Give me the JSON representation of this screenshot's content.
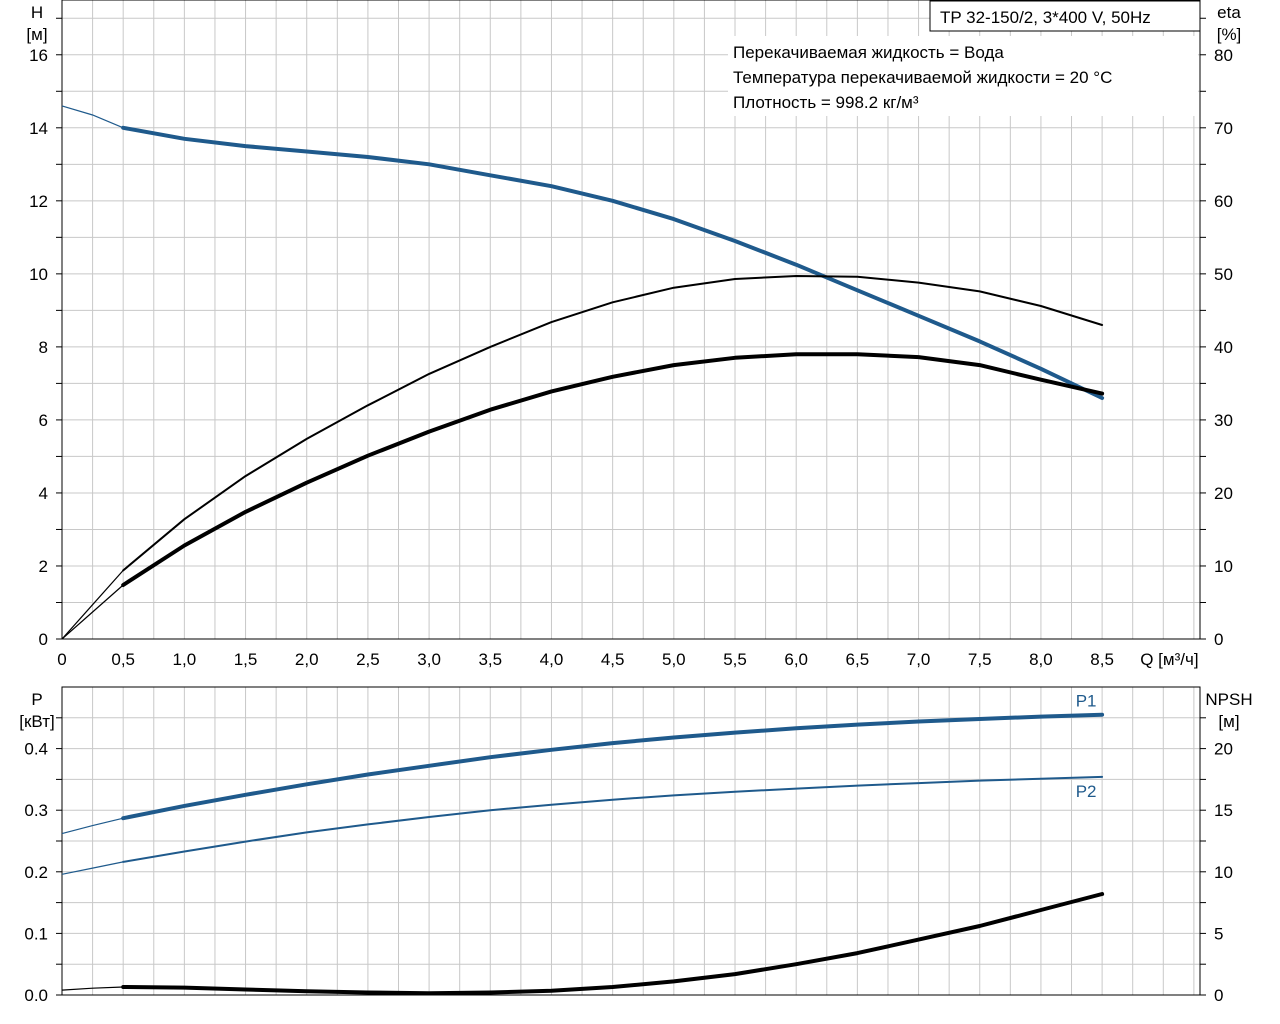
{
  "chart_data": [
    {
      "type": "line",
      "title": "TP 32-150/2, 3*400 V, 50Hz",
      "annotations": [
        "Перекачиваемая жидкость = Вода",
        "Температура перекачиваемой жидкости = 20 °C",
        "Плотность = 998.2 кг/м³"
      ],
      "xlabel": "Q [м³/ч]",
      "xlim": [
        0,
        9.3
      ],
      "x_ticks": [
        "0",
        "0,5",
        "1,0",
        "1,5",
        "2,0",
        "2,5",
        "3,0",
        "3,5",
        "4,0",
        "4,5",
        "5,0",
        "5,5",
        "6,0",
        "6,5",
        "7,0",
        "7,5",
        "8,0",
        "8,5"
      ],
      "left_axis": {
        "label_top": "H",
        "label_unit": "[м]",
        "ylim": [
          0,
          17.5
        ],
        "ticks": [
          "0",
          "2",
          "4",
          "6",
          "8",
          "10",
          "12",
          "14",
          "16"
        ]
      },
      "right_axis": {
        "label_top": "eta",
        "label_unit": "[%]",
        "ylim": [
          0,
          87.5
        ],
        "ticks": [
          "0",
          "10",
          "20",
          "30",
          "40",
          "50",
          "60",
          "70",
          "80"
        ]
      },
      "grid": true,
      "series": [
        {
          "axis": "left",
          "color": "#1f5a8c",
          "x": [
            0.5,
            1.0,
            1.5,
            2.0,
            2.5,
            3.0,
            3.5,
            4.0,
            4.5,
            5.0,
            5.5,
            6.0,
            6.5,
            7.0,
            7.5,
            8.0,
            8.5
          ],
          "y": [
            14.0,
            13.7,
            13.5,
            13.35,
            13.2,
            13.0,
            12.7,
            12.4,
            12.0,
            11.5,
            10.9,
            10.25,
            9.55,
            8.85,
            8.15,
            7.4,
            6.6
          ],
          "extension": {
            "x": [
              0,
              0.25,
              0.5
            ],
            "y": [
              14.6,
              14.35,
              14.0
            ]
          }
        },
        {
          "axis": "right",
          "color": "#000000",
          "x": [
            0.5,
            1.0,
            1.5,
            2.0,
            2.5,
            3.0,
            3.5,
            4.0,
            4.5,
            5.0,
            5.5,
            6.0,
            6.5,
            7.0,
            7.5,
            8.0,
            8.5
          ],
          "y": [
            7.4,
            12.8,
            17.4,
            21.4,
            25.1,
            28.4,
            31.4,
            33.9,
            35.9,
            37.5,
            38.5,
            39.0,
            39.0,
            38.6,
            37.5,
            35.5,
            33.6
          ],
          "extension": {
            "x": [
              0,
              0.25,
              0.5
            ],
            "y": [
              0,
              3.7,
              7.4
            ]
          }
        },
        {
          "axis": "right",
          "color": "#000000",
          "x": [
            0.5,
            1.0,
            1.5,
            2.0,
            2.5,
            3.0,
            3.5,
            4.0,
            4.5,
            5.0,
            5.5,
            6.0,
            6.5,
            7.0,
            7.5,
            8.0,
            8.5
          ],
          "y": [
            9.4,
            16.4,
            22.3,
            27.4,
            32.0,
            36.3,
            40.0,
            43.4,
            46.1,
            48.1,
            49.3,
            49.7,
            49.6,
            48.8,
            47.6,
            45.6,
            43.0
          ],
          "extension": {
            "x": [
              0,
              0.25,
              0.5
            ],
            "y": [
              0,
              4.7,
              9.4
            ]
          }
        }
      ]
    },
    {
      "type": "line",
      "xlim": [
        0,
        9.3
      ],
      "left_axis": {
        "label_top": "P",
        "label_unit": "[кВт]",
        "ylim": [
          0,
          0.5
        ],
        "ticks": [
          "0.0",
          "0.1",
          "0.2",
          "0.3",
          "0.4"
        ]
      },
      "right_axis": {
        "label_top": "NPSH",
        "label_unit": "[м]",
        "ylim": [
          0,
          25
        ],
        "ticks": [
          "0",
          "5",
          "10",
          "15",
          "20"
        ]
      },
      "grid": true,
      "series": [
        {
          "name": "P1",
          "axis": "left",
          "color": "#1f5a8c",
          "x": [
            0.5,
            1.0,
            1.5,
            2.0,
            2.5,
            3.0,
            3.5,
            4.0,
            4.5,
            5.0,
            5.5,
            6.0,
            6.5,
            7.0,
            7.5,
            8.0,
            8.5
          ],
          "y": [
            0.287,
            0.307,
            0.325,
            0.342,
            0.358,
            0.372,
            0.386,
            0.398,
            0.409,
            0.418,
            0.426,
            0.433,
            0.439,
            0.444,
            0.448,
            0.452,
            0.455
          ],
          "extension": {
            "x": [
              0,
              0.25,
              0.5
            ],
            "y": [
              0.262,
              0.275,
              0.287
            ]
          }
        },
        {
          "name": "P2",
          "axis": "left",
          "color": "#1f5a8c",
          "x": [
            0.5,
            1.0,
            1.5,
            2.0,
            2.5,
            3.0,
            3.5,
            4.0,
            4.5,
            5.0,
            5.5,
            6.0,
            6.5,
            7.0,
            7.5,
            8.0,
            8.5
          ],
          "y": [
            0.216,
            0.233,
            0.249,
            0.264,
            0.277,
            0.289,
            0.3,
            0.309,
            0.317,
            0.324,
            0.33,
            0.335,
            0.34,
            0.344,
            0.348,
            0.351,
            0.354
          ],
          "extension": {
            "x": [
              0,
              0.25,
              0.5
            ],
            "y": [
              0.196,
              0.206,
              0.216
            ]
          }
        },
        {
          "axis": "right",
          "color": "#000000",
          "x": [
            0.5,
            1.0,
            1.5,
            2.0,
            2.5,
            3.0,
            3.5,
            4.0,
            4.5,
            5.0,
            5.5,
            6.0,
            6.5,
            7.0,
            7.5,
            8.0,
            8.5
          ],
          "y": [
            0.65,
            0.6,
            0.45,
            0.3,
            0.2,
            0.15,
            0.2,
            0.35,
            0.65,
            1.1,
            1.7,
            2.5,
            3.4,
            4.5,
            5.6,
            6.9,
            8.2
          ],
          "extension": {
            "x": [
              0,
              0.25,
              0.5
            ],
            "y": [
              0.4,
              0.55,
              0.65
            ]
          }
        }
      ]
    }
  ]
}
